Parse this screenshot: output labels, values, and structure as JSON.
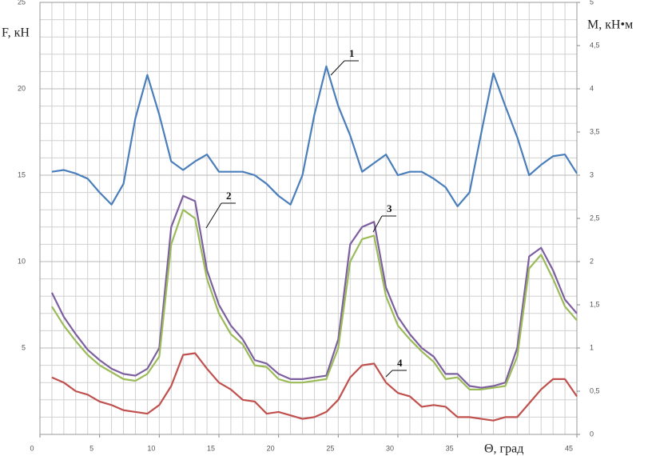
{
  "chart_data": {
    "type": "line",
    "x_label": "Θ, град",
    "y_label": "F, кН",
    "y2_label": "M, кН•м",
    "x": [
      1,
      2,
      3,
      4,
      5,
      6,
      7,
      8,
      9,
      10,
      11,
      12,
      13,
      14,
      15,
      16,
      17,
      18,
      19,
      20,
      21,
      22,
      23,
      24,
      25,
      26,
      27,
      28,
      29,
      30,
      31,
      32,
      33,
      34,
      35,
      36,
      37,
      38,
      39,
      40,
      41,
      42,
      43,
      44,
      45
    ],
    "series": [
      {
        "color": "#4a7ebb",
        "values": [
          15.2,
          15.3,
          15.1,
          14.8,
          14.0,
          13.3,
          14.5,
          18.3,
          20.8,
          18.5,
          15.8,
          15.3,
          15.8,
          16.2,
          15.2,
          15.2,
          15.2,
          15.0,
          14.5,
          13.8,
          13.3,
          15.0,
          18.5,
          21.3,
          19.0,
          17.3,
          15.2,
          15.7,
          16.2,
          15.0,
          15.2,
          15.2,
          14.8,
          14.3,
          13.2,
          14.0,
          17.5,
          20.9,
          19.0,
          17.2,
          15.0,
          15.6,
          16.1,
          16.2,
          15.1
        ]
      },
      {
        "color": "#7d5fa0",
        "values": [
          8.2,
          6.8,
          5.8,
          4.9,
          4.3,
          3.8,
          3.5,
          3.4,
          3.8,
          5.0,
          12.0,
          13.8,
          13.5,
          9.5,
          7.5,
          6.3,
          5.5,
          4.3,
          4.1,
          3.5,
          3.2,
          3.2,
          3.3,
          3.4,
          5.5,
          11.0,
          12.0,
          12.3,
          8.5,
          6.8,
          5.8,
          5.0,
          4.5,
          3.5,
          3.5,
          2.8,
          2.7,
          2.8,
          3.0,
          5.0,
          10.3,
          10.8,
          9.5,
          7.8,
          7.0
        ]
      },
      {
        "color": "#9bbb59",
        "values": [
          7.4,
          6.3,
          5.4,
          4.6,
          4.0,
          3.6,
          3.2,
          3.1,
          3.5,
          4.5,
          11.0,
          13.0,
          12.5,
          9.0,
          7.0,
          5.8,
          5.2,
          4.0,
          3.9,
          3.2,
          3.0,
          3.0,
          3.1,
          3.2,
          5.0,
          10.0,
          11.3,
          11.5,
          8.0,
          6.3,
          5.5,
          4.8,
          4.2,
          3.2,
          3.3,
          2.6,
          2.6,
          2.7,
          2.8,
          4.5,
          9.6,
          10.4,
          9.0,
          7.4,
          6.6
        ]
      },
      {
        "color": "#c0504d",
        "values": [
          3.3,
          3.0,
          2.5,
          2.3,
          1.9,
          1.7,
          1.4,
          1.3,
          1.2,
          1.7,
          2.8,
          4.6,
          4.7,
          3.8,
          3.0,
          2.6,
          2.0,
          1.9,
          1.2,
          1.3,
          1.1,
          0.9,
          1.0,
          1.3,
          2.0,
          3.3,
          4.0,
          4.1,
          3.0,
          2.4,
          2.2,
          1.6,
          1.7,
          1.6,
          1.0,
          1.0,
          0.9,
          0.8,
          1.0,
          1.0,
          1.8,
          2.6,
          3.2,
          3.2,
          2.2
        ]
      }
    ],
    "annotations": [
      "1",
      "2",
      "3",
      "4"
    ],
    "xlim": [
      0,
      45
    ],
    "xticks": [
      0,
      5,
      10,
      15,
      20,
      25,
      30,
      35,
      45
    ],
    "ylim": [
      0,
      25
    ],
    "yticks": [
      5,
      10,
      15,
      20,
      25
    ],
    "y2lim": [
      0,
      5
    ],
    "y2ticks": [
      0,
      {
        "value": 0.5,
        "label": "0,5"
      },
      1,
      {
        "value": 1.5,
        "label": "1,5"
      },
      2,
      {
        "value": 2.5,
        "label": "2,5"
      },
      3,
      {
        "value": 3.5,
        "label": "3,5"
      },
      4,
      {
        "value": 4.5,
        "label": "4,5"
      },
      5
    ],
    "grid": true
  }
}
